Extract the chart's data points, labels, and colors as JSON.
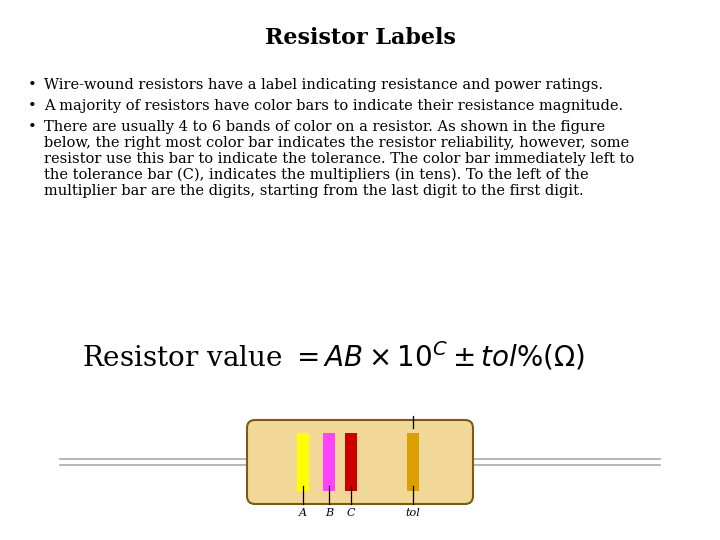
{
  "title": "Resistor Labels",
  "title_fontsize": 16,
  "background_color": "#ffffff",
  "bullet1": "Wire-wound resistors have a label indicating resistance and power ratings.",
  "bullet2": "A majority of resistors have color bars to indicate their resistance magnitude.",
  "bullet3_line1": "There are usually 4 to 6 bands of color on a resistor. As shown in the figure",
  "bullet3_line2": "below, the right most color bar indicates the resistor reliability, however, some",
  "bullet3_line3": "resistor use this bar to indicate the tolerance. The color bar immediately left to",
  "bullet3_line4": "the tolerance bar (C), indicates the multipliers (in tens). To the left of the",
  "bullet3_line5": "multiplier bar are the digits, starting from the last digit to the first digit.",
  "formula_prefix": "Resistor value =",
  "formula_fontsize": 20,
  "body_color": "#f2d898",
  "body_outline": "#7a5c10",
  "wire_color": "#aaaaaa",
  "band_A_color": "#ffff00",
  "band_B_color": "#ff44ff",
  "band_C_color": "#cc0000",
  "band_tol_color": "#daa000",
  "label_fontsize": 8,
  "bullet_fontsize": 10.5
}
